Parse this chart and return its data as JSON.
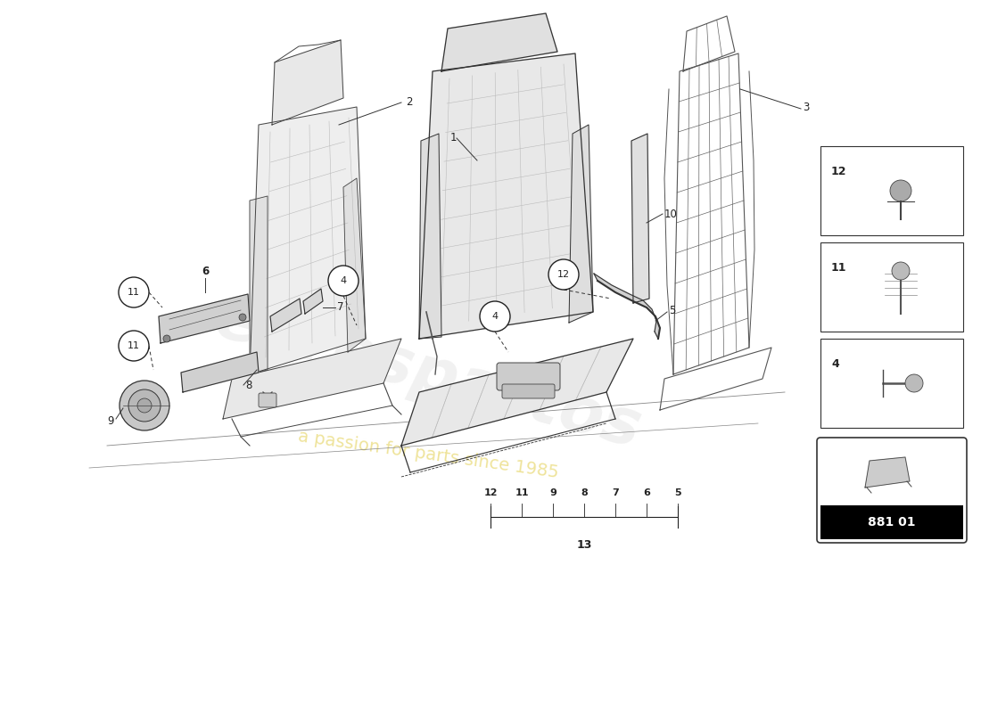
{
  "bg_color": "#ffffff",
  "part_number_box": "881 01",
  "small_parts_nums": [
    "12",
    "11",
    "4"
  ],
  "watermark_color": "#c8c8c8",
  "watermark_yellow": "#e8d880",
  "line_color": "#222222",
  "line_lw": 0.8,
  "seat_fill": "#e8e8e8",
  "seat_line": "#333333"
}
